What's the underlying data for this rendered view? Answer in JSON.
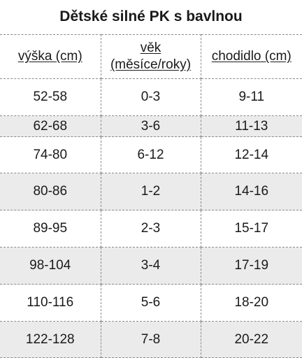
{
  "title": "Dětské silné PK s bavlnou",
  "table": {
    "headers": [
      "výška (cm)",
      "věk\n(měsíce/roky)",
      "chodidlo (cm)"
    ],
    "rows": [
      [
        "52-58",
        "0-3",
        "9-11"
      ],
      [
        "62-68",
        "3-6",
        "11-13"
      ],
      [
        "74-80",
        "6-12",
        "12-14"
      ],
      [
        "80-86",
        "1-2",
        "14-16"
      ],
      [
        "89-95",
        "2-3",
        "15-17"
      ],
      [
        "98-104",
        "3-4",
        "17-19"
      ],
      [
        "110-116",
        "5-6",
        "18-20"
      ],
      [
        "122-128",
        "7-8",
        "20-22"
      ]
    ]
  },
  "colors": {
    "stripe": "#ebebeb",
    "background": "#ffffff",
    "border": "#8a8a8a"
  }
}
